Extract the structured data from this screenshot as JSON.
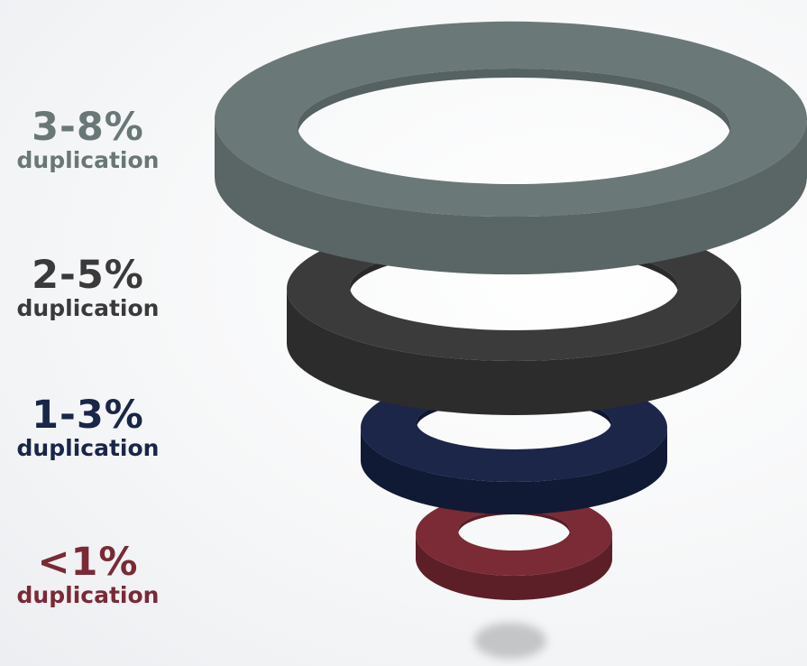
{
  "levels": [
    {
      "percent": "3-8%",
      "label": "duplication",
      "color": "#6a7777",
      "ring_color": "#6b7878"
    },
    {
      "percent": "2-5%",
      "label": "duplication",
      "color": "#3a3a3b",
      "ring_color": "#3b3b3c"
    },
    {
      "percent": "1-3%",
      "label": "duplication",
      "color": "#1a2648",
      "ring_color": "#1b2649"
    },
    {
      "percent": "<1%",
      "label": "duplication",
      "color": "#7a2a35",
      "ring_color": "#7b2b35"
    }
  ]
}
